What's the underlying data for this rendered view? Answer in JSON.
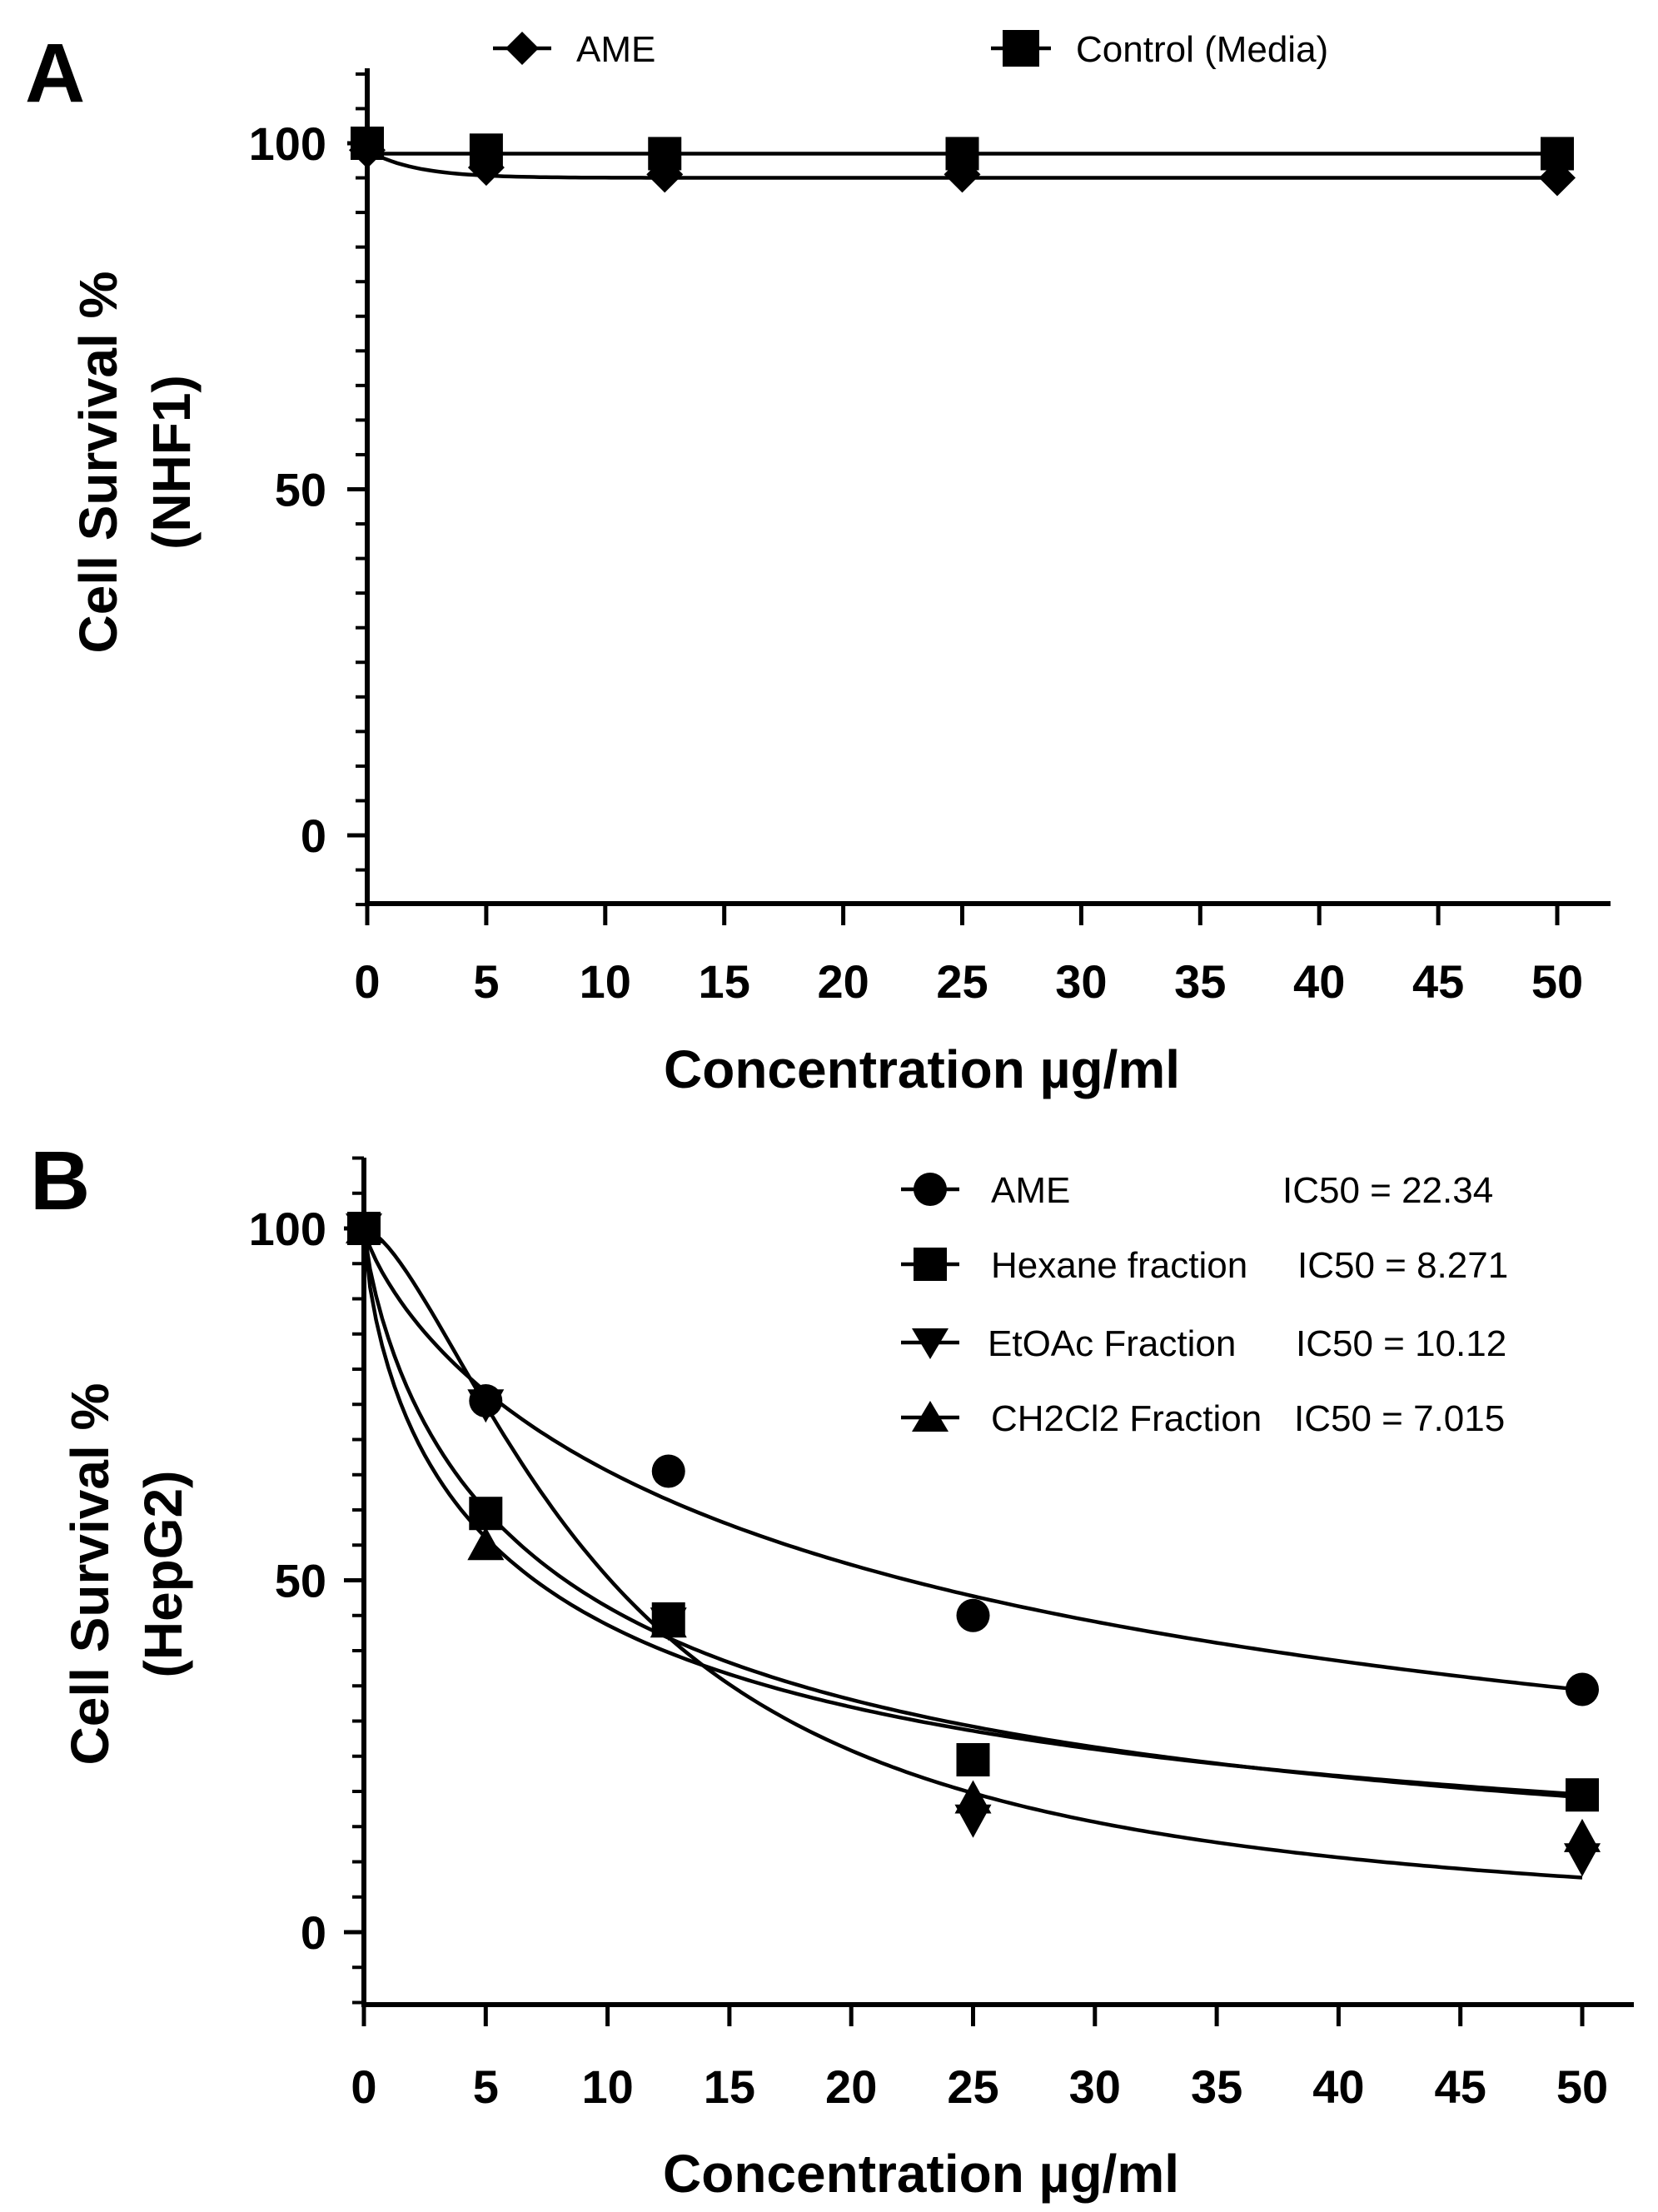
{
  "chart_data": [
    {
      "panel_label": "A",
      "type": "line",
      "xlabel": "Concentration µg/ml",
      "ylabel": [
        "Cell Survival %",
        "(NHF1)"
      ],
      "xlim": [
        0,
        52
      ],
      "ylim": [
        -10,
        110
      ],
      "x_ticks": [
        0,
        5,
        10,
        15,
        20,
        25,
        30,
        35,
        40,
        45,
        50
      ],
      "y_ticks": [
        0,
        50,
        100
      ],
      "legend_position": "top",
      "series": [
        {
          "name": "AME",
          "marker": "diamond",
          "x": [
            0,
            5,
            12.5,
            25,
            50
          ],
          "y": [
            99,
            96.5,
            95.5,
            95.5,
            95
          ],
          "fit": {
            "model": "plateau",
            "start": 99,
            "plateau": 95,
            "rate": 0.5
          }
        },
        {
          "name": "Control (Media)",
          "marker": "square",
          "x": [
            0,
            5,
            12.5,
            25,
            50
          ],
          "y": [
            100,
            99,
            98.5,
            98.5,
            98.5
          ],
          "fit": {
            "model": "flat",
            "value": 98.5
          }
        }
      ]
    },
    {
      "panel_label": "B",
      "type": "line",
      "xlabel": "Concentration µg/ml",
      "ylabel": [
        "Cell Survival %",
        "(HepG2)"
      ],
      "xlim": [
        0,
        52
      ],
      "ylim": [
        -10,
        110
      ],
      "x_ticks": [
        0,
        5,
        10,
        15,
        20,
        25,
        30,
        35,
        40,
        45,
        50
      ],
      "y_ticks": [
        0,
        50,
        100
      ],
      "legend_position": "top-right",
      "series": [
        {
          "name": "AME",
          "ic50_label": "IC50 = 22.34",
          "marker": "circle",
          "x": [
            0,
            5,
            12.5,
            25,
            50
          ],
          "y": [
            100,
            75.5,
            65.5,
            45,
            34.5
          ],
          "fit": {
            "ic50": 22.34,
            "hill": 0.8
          }
        },
        {
          "name": "Hexane fraction",
          "ic50_label": "IC50 = 8.271",
          "marker": "square",
          "x": [
            0,
            5,
            12.5,
            25,
            50
          ],
          "y": [
            100,
            59.5,
            44.5,
            24.5,
            19.5
          ],
          "fit": {
            "ic50": 8.271,
            "hill": 0.8
          }
        },
        {
          "name": "EtOAc Fraction",
          "ic50_label": "IC50 = 10.12",
          "marker": "triangle-down",
          "x": [
            0,
            5,
            12.5,
            25,
            50
          ],
          "y": [
            100,
            75,
            44,
            16,
            10.5
          ],
          "fit": {
            "ic50": 10.12,
            "hill": 1.55
          }
        },
        {
          "name": "CH2Cl2 Fraction",
          "ic50_label": "IC50 = 7.015",
          "marker": "triangle-up",
          "x": [
            0,
            5,
            12.5,
            25,
            50
          ],
          "y": [
            100,
            55,
            44,
            19,
            13.5
          ],
          "fit": {
            "ic50": 7.015,
            "hill": 0.72
          }
        }
      ]
    }
  ]
}
